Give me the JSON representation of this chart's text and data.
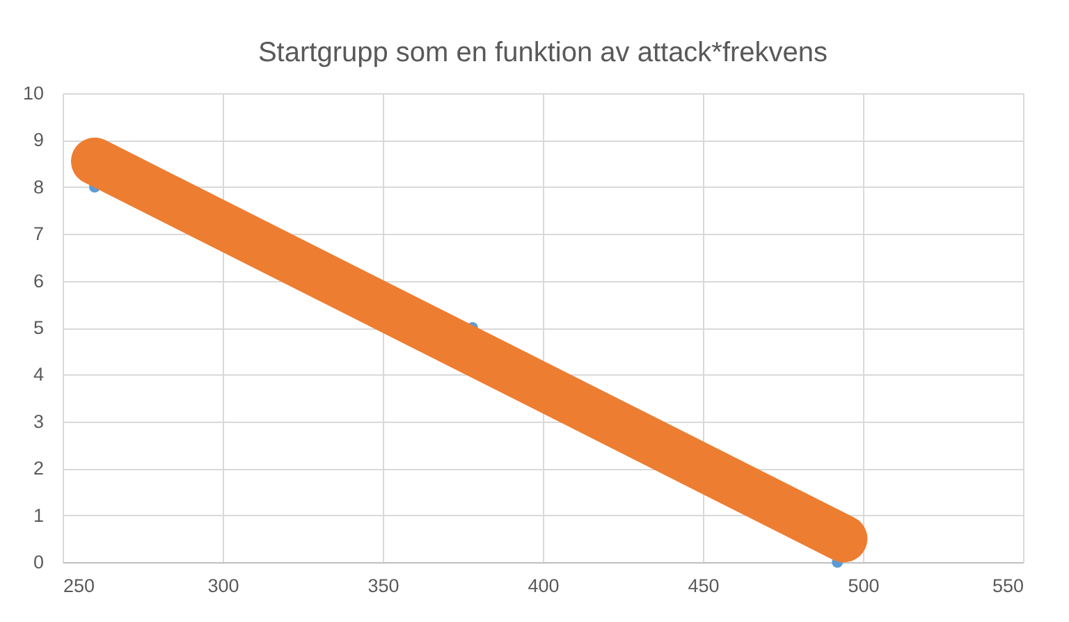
{
  "chart_data": {
    "type": "scatter",
    "title": "Startgrupp som en funktion av attack*frekvens",
    "xlim": [
      250,
      550
    ],
    "xticks": [
      250,
      300,
      350,
      400,
      450,
      500,
      550
    ],
    "ylim": [
      0,
      10
    ],
    "yticks": [
      0,
      1,
      2,
      3,
      4,
      5,
      6,
      7,
      8,
      9,
      10
    ],
    "grid": true,
    "series": [
      {
        "type": "scatter",
        "color": "#5b9bd5",
        "marker": "circle",
        "x": [
          260,
          378,
          492
        ],
        "values": [
          8,
          5,
          0
        ]
      },
      {
        "type": "line",
        "color": "#ed7d31",
        "x": [
          260,
          494
        ],
        "values": [
          8.55,
          0.5
        ]
      }
    ]
  }
}
